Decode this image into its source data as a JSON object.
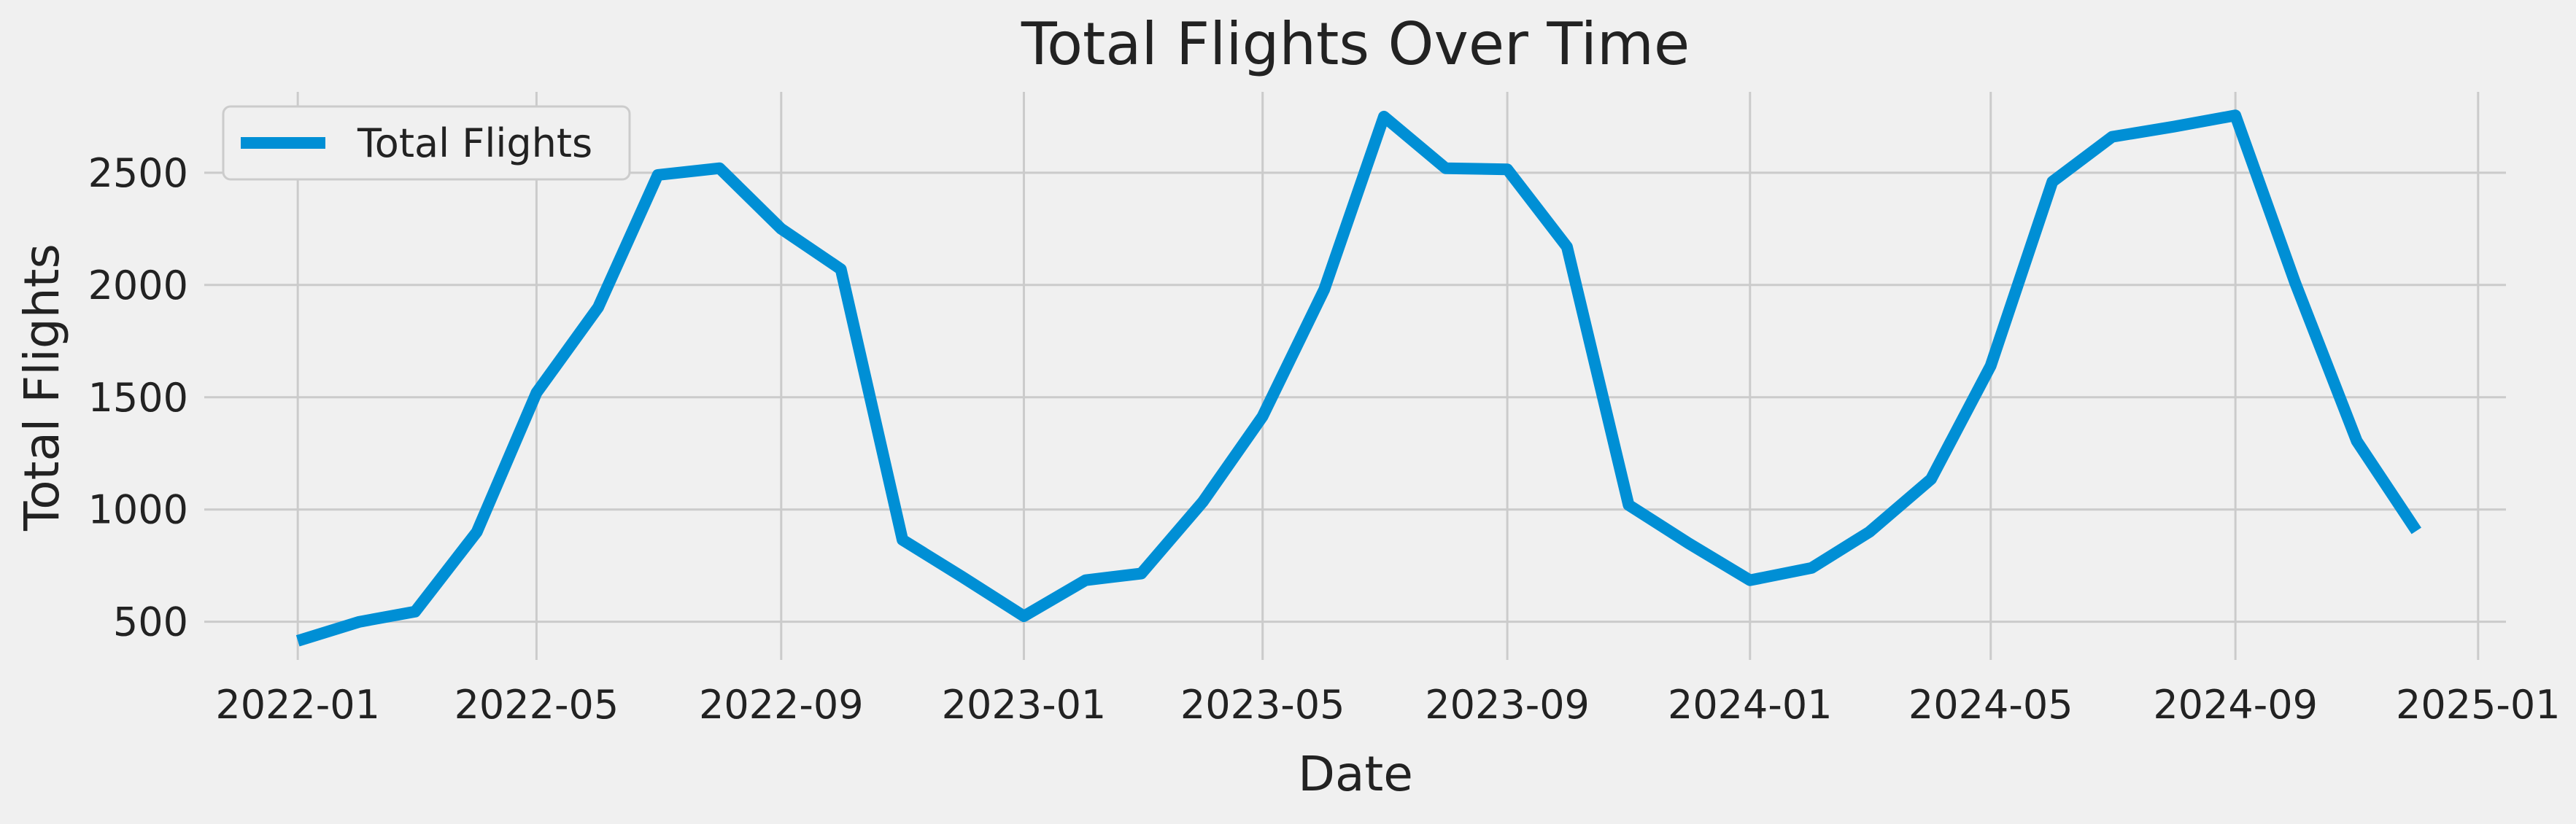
{
  "colors": {
    "background": "#f0f0f0",
    "grid": "#cbcbcb",
    "line": "#008fd5",
    "legend_bg": "#f0f0f0",
    "legend_border": "#cccccc",
    "text": "#222222"
  },
  "chart_data": {
    "type": "line",
    "title": "Total Flights Over Time",
    "xlabel": "Date",
    "ylabel": "Total Flights",
    "grid": true,
    "legend_position": "top-left",
    "xlim": [
      "2021-11-15",
      "2025-01-15"
    ],
    "ylim": [
      330,
      2860
    ],
    "x_ticks": [
      "2022-01",
      "2022-05",
      "2022-09",
      "2023-01",
      "2023-05",
      "2023-09",
      "2024-01",
      "2024-05",
      "2024-09",
      "2025-01"
    ],
    "y_ticks": [
      500,
      1000,
      1500,
      2000,
      2500
    ],
    "x": [
      "2022-01-01",
      "2022-02-01",
      "2022-03-01",
      "2022-04-01",
      "2022-05-01",
      "2022-06-01",
      "2022-07-01",
      "2022-08-01",
      "2022-09-01",
      "2022-10-01",
      "2022-11-01",
      "2022-12-01",
      "2023-01-01",
      "2023-02-01",
      "2023-03-01",
      "2023-04-01",
      "2023-05-01",
      "2023-06-01",
      "2023-07-01",
      "2023-08-01",
      "2023-09-01",
      "2023-10-01",
      "2023-11-01",
      "2023-12-01",
      "2024-01-01",
      "2024-02-01",
      "2024-03-01",
      "2024-04-01",
      "2024-05-01",
      "2024-06-01",
      "2024-07-01",
      "2024-08-01",
      "2024-09-01",
      "2024-10-01",
      "2024-11-01",
      "2024-12-01"
    ],
    "series": [
      {
        "name": "Total Flights",
        "values": [
          415,
          500,
          545,
          900,
          1520,
          1900,
          2490,
          2520,
          2250,
          2070,
          865,
          700,
          525,
          685,
          715,
          1035,
          1415,
          1980,
          2750,
          2520,
          2515,
          2170,
          1020,
          850,
          685,
          740,
          900,
          1135,
          1640,
          2460,
          2660,
          2705,
          2755,
          2010,
          1305,
          905
        ]
      }
    ]
  }
}
